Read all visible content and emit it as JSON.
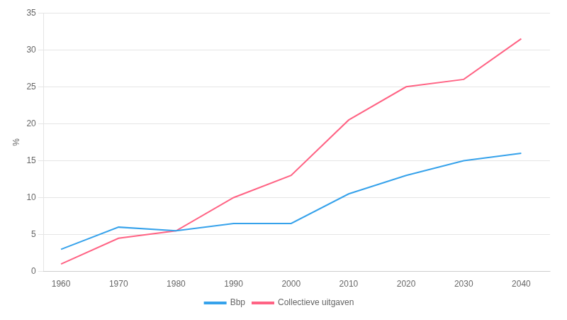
{
  "chart_data": {
    "type": "line",
    "x": [
      1960,
      1970,
      1980,
      1990,
      2000,
      2010,
      2020,
      2030,
      2040
    ],
    "series": [
      {
        "name": "Bbp",
        "values": [
          3.0,
          6.0,
          5.5,
          6.5,
          6.5,
          10.5,
          13.0,
          15.0,
          16.0
        ]
      },
      {
        "name": "Collectieve uitgaven",
        "values": [
          1.0,
          4.5,
          5.5,
          10.0,
          13.0,
          20.5,
          25.0,
          26.0,
          31.5
        ]
      }
    ],
    "y_label": "%",
    "xlim": [
      1957,
      2045
    ],
    "xticks": [
      1960,
      1970,
      1980,
      1990,
      2000,
      2010,
      2020,
      2030,
      2040
    ],
    "ylim": [
      0,
      35
    ],
    "yticks": [
      0,
      5,
      10,
      15,
      20,
      25,
      30,
      35
    ],
    "grid": true,
    "legend": "bottom"
  }
}
